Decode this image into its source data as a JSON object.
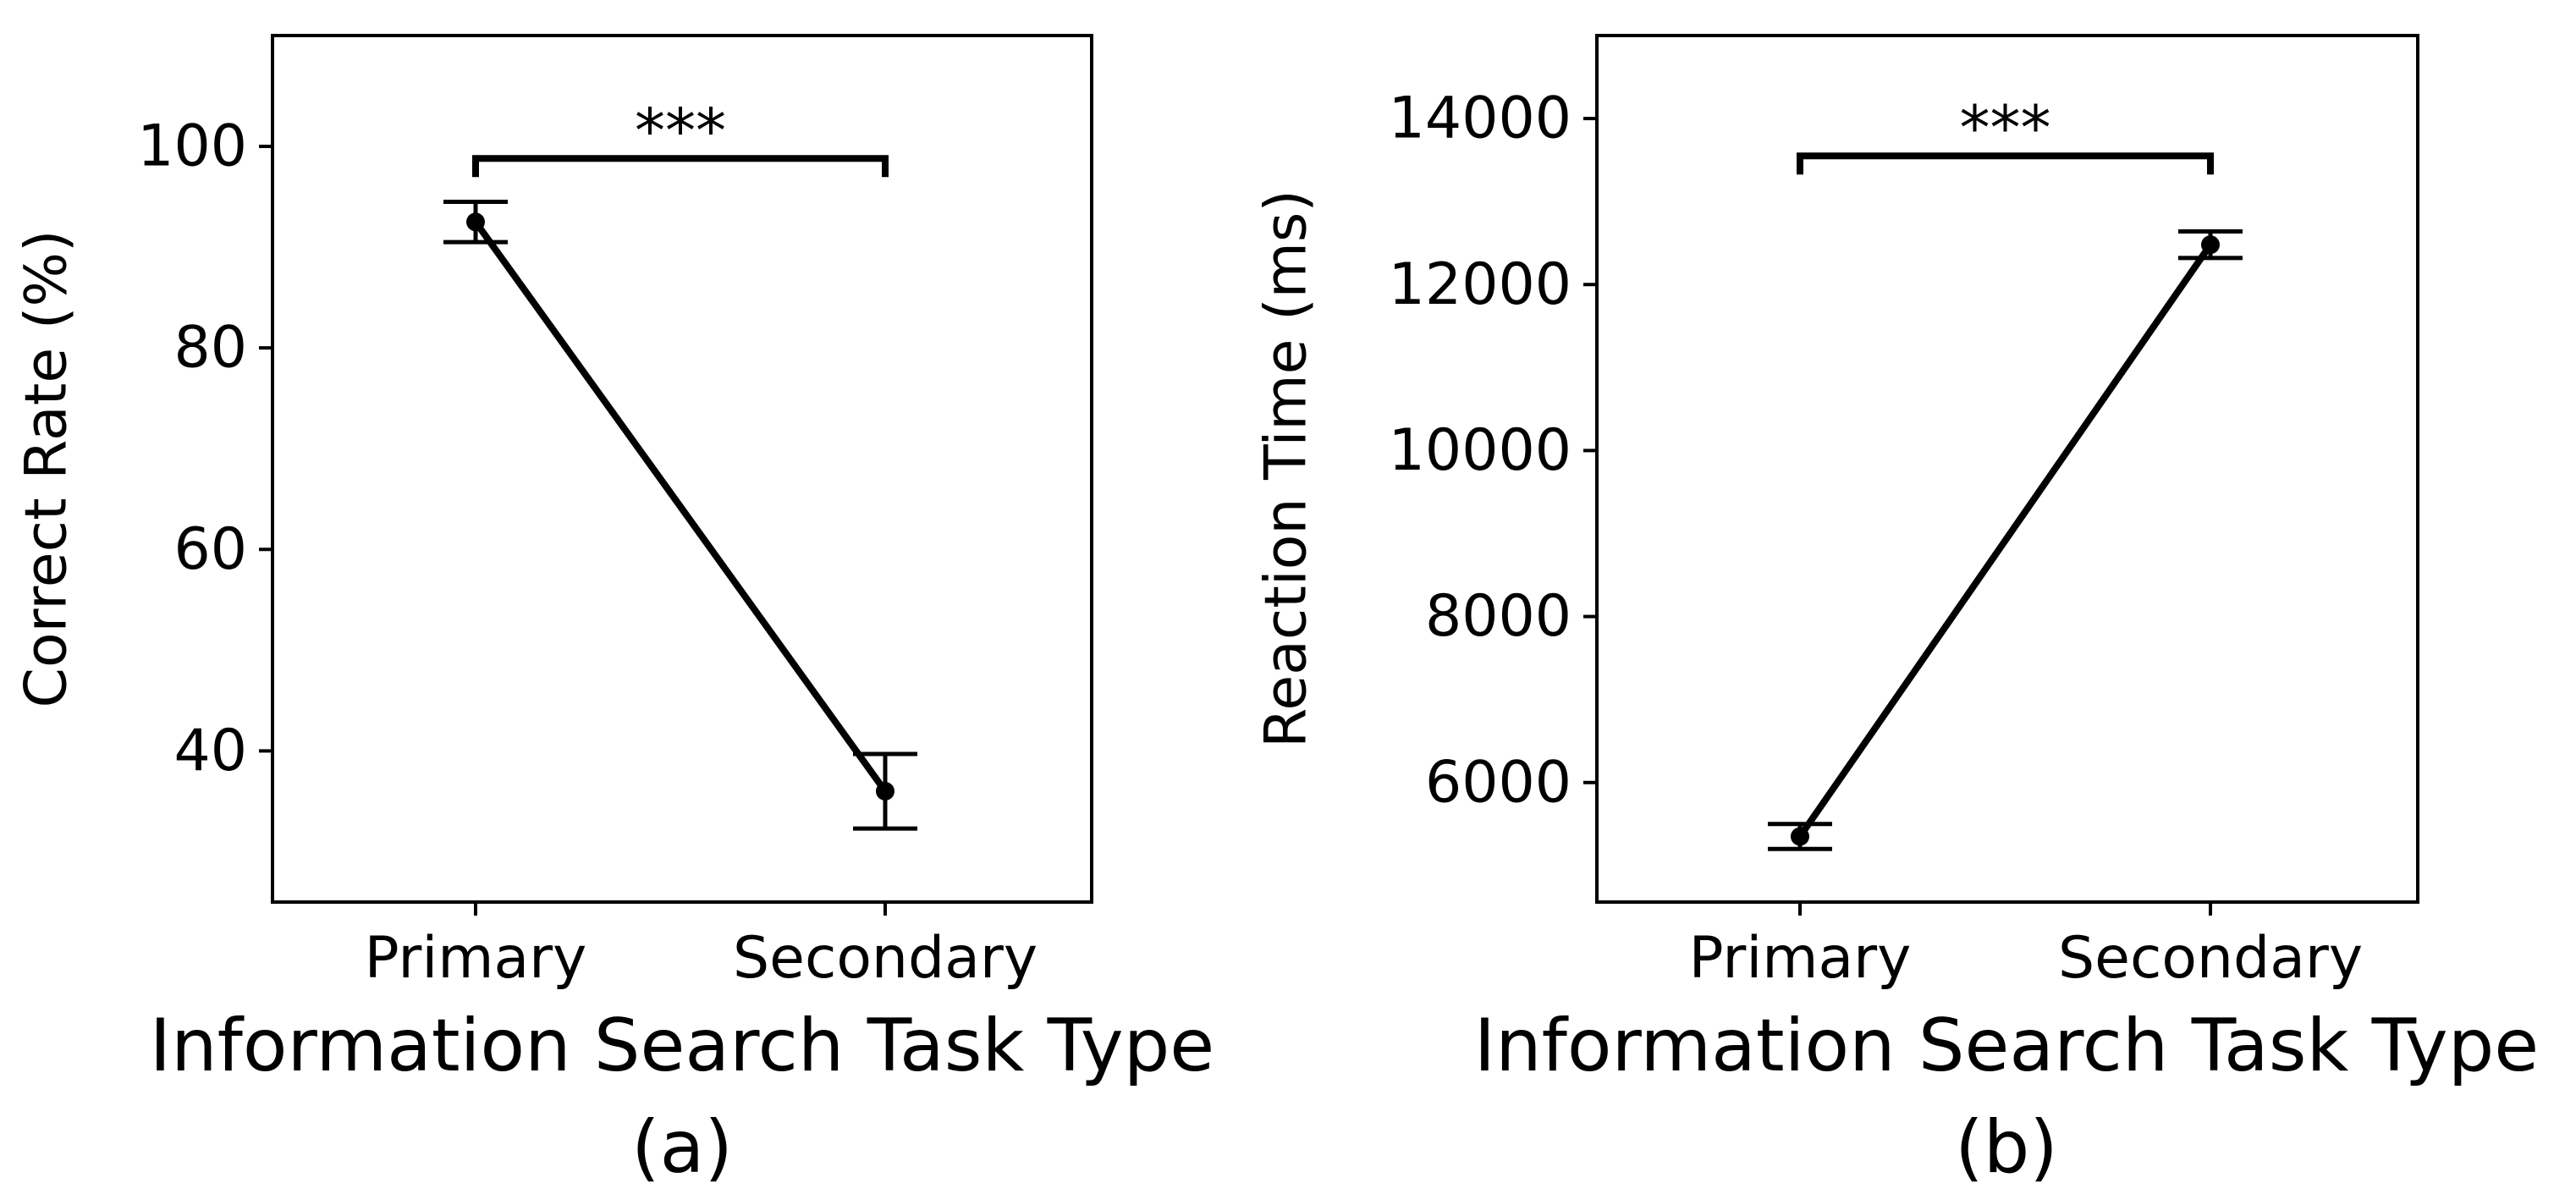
{
  "figure": {
    "panels": [
      {
        "caption": "(a)"
      },
      {
        "caption": "(b)"
      }
    ]
  },
  "chart_data": [
    {
      "type": "line",
      "title": "",
      "xlabel": "Information Search Task Type",
      "ylabel": "Correct Rate (%)",
      "categories": [
        "Primary",
        "Secondary"
      ],
      "values": [
        92.5,
        36.0
      ],
      "error": [
        2.0,
        3.7
      ],
      "ylim": [
        25,
        111
      ],
      "yticks": [
        40,
        60,
        80,
        100
      ],
      "ytick_labels": [
        "40",
        "60",
        "80",
        "100"
      ],
      "grid": false,
      "significance": {
        "label": "***",
        "between": [
          0,
          1
        ],
        "level": 98.8
      },
      "color": "#000000",
      "caption": "(a)"
    },
    {
      "type": "line",
      "title": "",
      "xlabel": "Information Search Task Type",
      "ylabel": "Reaction Time (ms)",
      "categories": [
        "Primary",
        "Secondary"
      ],
      "values": [
        5350,
        12480
      ],
      "error": [
        150,
        160
      ],
      "ylim": [
        4560,
        15000
      ],
      "yticks": [
        6000,
        8000,
        10000,
        12000,
        14000
      ],
      "ytick_labels": [
        "6000",
        "8000",
        "10000",
        "12000",
        "14000"
      ],
      "grid": false,
      "significance": {
        "label": "***",
        "between": [
          0,
          1
        ],
        "level": 13550
      },
      "color": "#000000",
      "caption": "(b)"
    }
  ]
}
